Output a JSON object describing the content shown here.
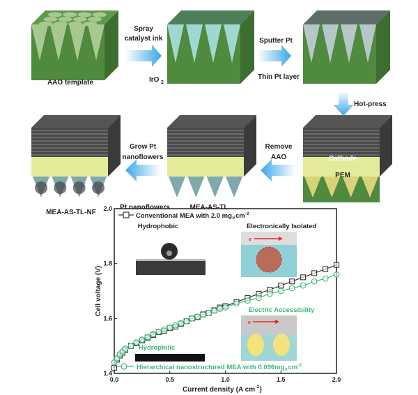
{
  "process": {
    "step1_label": "AAO template",
    "arrow1_label_line1": "Spray",
    "arrow1_label_line2": "catalyst ink",
    "iro2_label": "IrO",
    "iro2_sub": "2",
    "arrow2_label": "Sputter Pt",
    "thin_pt_label": "Thin Pt layer",
    "arrow3_label": "Hot-press",
    "cathode_label": "Cathode",
    "pem_label": "PEM",
    "arrow4_label_line1": "Remove",
    "arrow4_label_line2": "AAO",
    "step5_label": "MEA-AS-TL",
    "arrow5_label_line1": "Grow Pt",
    "arrow5_label_line2": "nanoflowers",
    "nanoflowers_label": "Pt nanoflowers",
    "step6_label": "MEA-AS-TL-NF"
  },
  "colors": {
    "template_green": "#4f8a3f",
    "arrow_blue": "#3aa7e8",
    "series_conventional": "#333333",
    "series_hierarchical": "#3cb878"
  },
  "insets": {
    "hydrophobic": "Hydrophobic",
    "hydrophilic": "Hydrophilic",
    "isolated": "Electronically Isolated",
    "accessibility": "Electric Accessibility",
    "electron": "e",
    "electron_sup": "-"
  },
  "chart_data": {
    "type": "line",
    "xlabel": "Current density (A cm",
    "xlabel_sup": "-2",
    "xlabel_end": ")",
    "ylabel": "Cell voltage (V)",
    "xlim": [
      0,
      2.0
    ],
    "ylim": [
      1.4,
      2.0
    ],
    "xticks": [
      "0.0",
      "0.5",
      "1.0",
      "1.5",
      "2.0"
    ],
    "yticks": [
      "1.4",
      "1.6",
      "1.8",
      "2.0"
    ],
    "grid": false,
    "legend_placement": "top-left / bottom-left",
    "series": [
      {
        "name": "Conventional MEA with 2.0 mg",
        "name_sub": "Ir",
        "name_tail": "cm",
        "name_sup": "-2",
        "marker": "square",
        "x": [
          0,
          0.025,
          0.05,
          0.075,
          0.1,
          0.15,
          0.2,
          0.25,
          0.3,
          0.35,
          0.4,
          0.45,
          0.5,
          0.55,
          0.6,
          0.65,
          0.7,
          0.75,
          0.8,
          0.85,
          0.9,
          0.95,
          1.0,
          1.1,
          1.2,
          1.3,
          1.4,
          1.5,
          1.6,
          1.7,
          1.8,
          1.9,
          2.0
        ],
        "y": [
          1.42,
          1.45,
          1.465,
          1.475,
          1.485,
          1.5,
          1.51,
          1.52,
          1.53,
          1.54,
          1.55,
          1.555,
          1.565,
          1.57,
          1.58,
          1.59,
          1.6,
          1.605,
          1.615,
          1.62,
          1.63,
          1.64,
          1.645,
          1.66,
          1.675,
          1.69,
          1.705,
          1.72,
          1.735,
          1.75,
          1.765,
          1.78,
          1.795
        ]
      },
      {
        "name": "Hierarchical nanostructured MEA with 0.096mg",
        "name_sub": "Ir",
        "name_tail": "cm",
        "name_sup": "-2",
        "marker": "circle",
        "x": [
          0,
          0.025,
          0.05,
          0.075,
          0.1,
          0.15,
          0.2,
          0.25,
          0.3,
          0.35,
          0.4,
          0.45,
          0.5,
          0.55,
          0.6,
          0.65,
          0.7,
          0.75,
          0.8,
          0.85,
          0.9,
          0.95,
          1.0,
          1.1,
          1.2,
          1.3,
          1.4,
          1.5,
          1.6,
          1.7,
          1.8,
          1.9,
          2.0
        ],
        "y": [
          1.44,
          1.455,
          1.47,
          1.48,
          1.49,
          1.5,
          1.513,
          1.523,
          1.533,
          1.543,
          1.552,
          1.56,
          1.567,
          1.575,
          1.583,
          1.59,
          1.6,
          1.607,
          1.614,
          1.62,
          1.628,
          1.635,
          1.64,
          1.655,
          1.665,
          1.675,
          1.69,
          1.7,
          1.71,
          1.72,
          1.735,
          1.745,
          1.76
        ]
      }
    ]
  }
}
